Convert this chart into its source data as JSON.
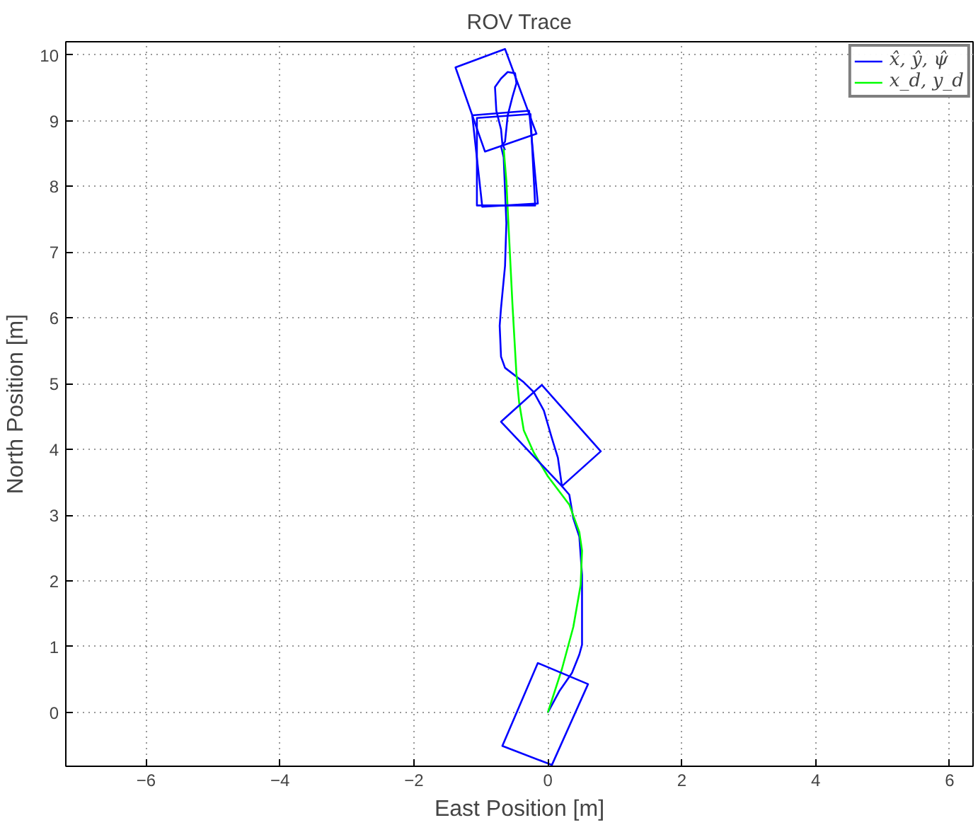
{
  "chart_data": {
    "type": "line",
    "title": "ROV Trace",
    "xlabel": "East Position [m]",
    "ylabel": "North Position [m]",
    "xlim": [
      -7.2,
      6.35
    ],
    "ylim": [
      -0.82,
      10.2
    ],
    "xticks": [
      -6,
      -4,
      -2,
      0,
      2,
      4,
      6
    ],
    "yticks": [
      0,
      1,
      2,
      3,
      4,
      5,
      6,
      7,
      8,
      9,
      10
    ],
    "grid": true,
    "legend": "top right",
    "line_style": "solid",
    "marker": "none",
    "series": [
      {
        "name": "x̂, ŷ, ψ̂",
        "color": "#0000ff",
        "x": [
          0,
          0.17,
          0.36,
          0.47,
          0.51,
          0.51,
          0.51,
          0.47,
          0.38,
          0.32,
          0.21,
          0.15,
          0.06,
          0,
          -0.06,
          -0.21,
          -0.36,
          -0.64,
          -0.7,
          -0.72,
          -0.7,
          -0.64,
          -0.62,
          -0.66,
          -0.7,
          -0.64,
          -0.6,
          -0.53,
          -0.47,
          -0.49,
          -0.6,
          -0.7,
          -0.79,
          -0.77,
          -0.7,
          -0.68,
          -0.64
        ],
        "values": [
          0,
          0.32,
          0.6,
          0.88,
          1.03,
          1.6,
          2.09,
          2.67,
          2.95,
          3.31,
          3.44,
          3.87,
          4.17,
          4.38,
          4.59,
          4.87,
          5.02,
          5.24,
          5.41,
          5.88,
          6.15,
          6.79,
          7.44,
          8.44,
          8.61,
          8.68,
          9.08,
          9.36,
          9.57,
          9.72,
          9.74,
          9.64,
          9.51,
          9.15,
          8.87,
          8.65,
          8.55
        ]
      },
      {
        "name": "x_d, y_d",
        "color": "#00ff00",
        "x": [
          0,
          0.21,
          0.38,
          0.49,
          0.51,
          0.47,
          0.32,
          0,
          -0.21,
          -0.36,
          -0.43,
          -0.47,
          -0.53,
          -0.6,
          -0.62,
          -0.66
        ],
        "values": [
          0,
          0.66,
          1.3,
          1.94,
          2.46,
          2.74,
          3.16,
          3.59,
          3.95,
          4.29,
          4.72,
          5.15,
          6.22,
          7.65,
          8.08,
          8.57
        ]
      },
      {
        "color": "#0000ff",
        "x": [
          -0.15,
          0.6,
          0.06,
          -0.68,
          -0.15,
          0.6
        ],
        "values": [
          0.75,
          0.43,
          -0.8,
          -0.51,
          0.75,
          0.43
        ]
      },
      {
        "color": "#0000ff",
        "x": [
          -0.09,
          0.79,
          0.21,
          -0.7,
          -0.09,
          0.79
        ],
        "values": [
          4.98,
          3.97,
          3.44,
          4.42,
          4.98,
          3.97
        ]
      },
      {
        "color": "#0000ff",
        "x": [
          -1.13,
          -0.28,
          -0.15,
          -0.98,
          -1.13,
          -0.28
        ],
        "values": [
          9.08,
          9.15,
          7.74,
          7.69,
          9.08,
          9.15
        ]
      },
      {
        "color": "#0000ff",
        "x": [
          -1.06,
          -0.26,
          -0.19,
          -1.06,
          -1.06,
          -0.26
        ],
        "values": [
          9.04,
          9.1,
          7.71,
          7.71,
          9.04,
          9.1
        ]
      },
      {
        "color": "#0000ff",
        "x": [
          -1.38,
          -0.64,
          -0.17,
          -0.94,
          -1.38,
          -0.64
        ],
        "values": [
          9.81,
          10.09,
          8.8,
          8.53,
          9.81,
          10.09
        ]
      }
    ]
  }
}
